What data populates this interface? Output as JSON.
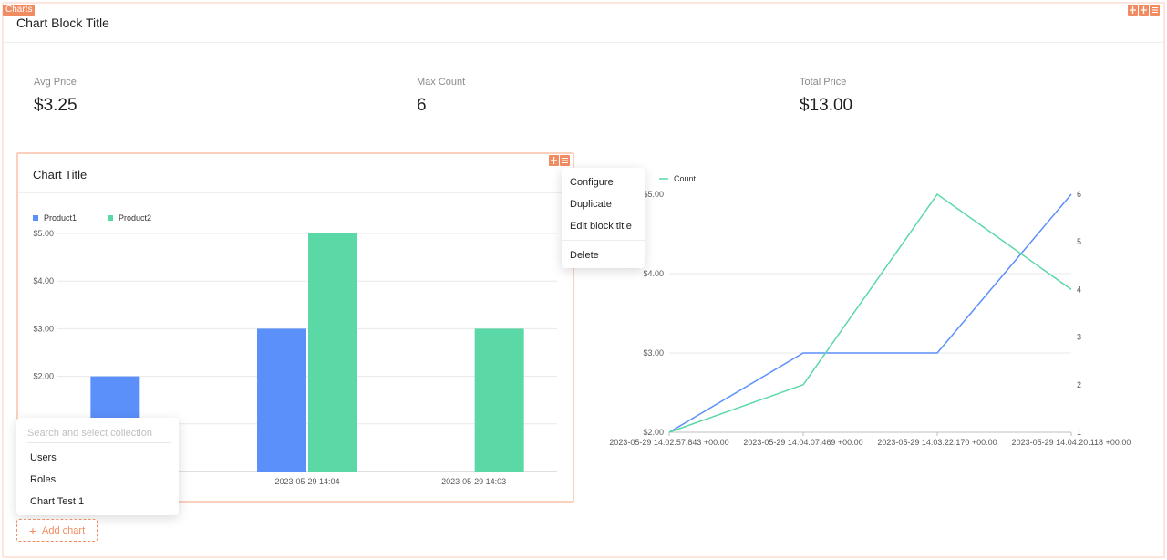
{
  "block": {
    "tag": "Charts",
    "title": "Chart Block Title"
  },
  "stats": [
    {
      "label": "Avg Price",
      "value": "$3.25"
    },
    {
      "label": "Max Count",
      "value": "6"
    },
    {
      "label": "Total Price",
      "value": "$13.00"
    }
  ],
  "card": {
    "title": "Chart Title"
  },
  "menu": {
    "items": [
      "Configure",
      "Duplicate",
      "Edit block title"
    ],
    "danger": "Delete"
  },
  "collection_picker": {
    "placeholder": "Search and select collection",
    "items": [
      "Users",
      "Roles",
      "Chart Test 1"
    ]
  },
  "add_chart": {
    "label": "Add chart"
  },
  "colors": {
    "accent": "#f18b62",
    "blue": "#5b8ff9",
    "green": "#5ad8a6"
  },
  "chart_data": [
    {
      "type": "bar",
      "categories": [
        "",
        "2023-05-29 14:04",
        "2023-05-29 14:03"
      ],
      "series": [
        {
          "name": "Product1",
          "values": [
            2,
            3,
            null
          ]
        },
        {
          "name": "Product2",
          "values": [
            null,
            5,
            3
          ]
        }
      ],
      "yticks": [
        "$5.00",
        "$4.00",
        "$3.00",
        "$2.00"
      ],
      "ylim": [
        0,
        5
      ],
      "legend": "top-left",
      "grid": true
    },
    {
      "type": "line",
      "x": [
        "2023-05-29 14:02:57.843 +00:00",
        "2023-05-29 14:04:07.469 +00:00",
        "2023-05-29 14:03:22.170 +00:00",
        "2023-05-29 14:04:20.118 +00:00"
      ],
      "series": [
        {
          "values": [
            2,
            3,
            3,
            5
          ],
          "axis": "left"
        },
        {
          "name": "Count",
          "values": [
            1,
            2,
            6,
            4
          ],
          "axis": "right"
        }
      ],
      "yleft_ticks": [
        "$5.00",
        "$4.00",
        "$3.00",
        "$2.00"
      ],
      "yleft_lim": [
        2,
        5
      ],
      "yright_ticks": [
        "6",
        "5",
        "4",
        "3",
        "2",
        "1"
      ],
      "yright_lim": [
        1,
        6
      ],
      "legend": "top-left",
      "grid": true
    }
  ]
}
